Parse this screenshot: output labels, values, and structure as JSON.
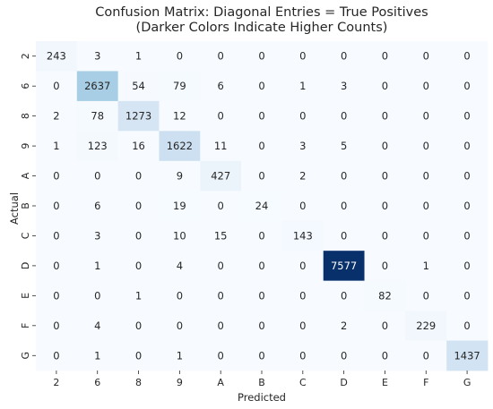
{
  "chart_data": {
    "type": "heatmap",
    "title": "Confusion Matrix: Diagonal Entries = True Positives",
    "subtitle": "(Darker Colors Indicate Higher Counts)",
    "xlabel": "Predicted",
    "ylabel": "Actual",
    "colormap": "Blues",
    "colors": {
      "low": "#f7fbff",
      "high": "#08306b",
      "text_dark": "#262626",
      "text_light": "#ffffff"
    },
    "x_categories": [
      "2",
      "6",
      "8",
      "9",
      "A",
      "B",
      "C",
      "D",
      "E",
      "F",
      "G"
    ],
    "y_categories": [
      "2",
      "6",
      "8",
      "9",
      "A",
      "B",
      "C",
      "D",
      "E",
      "F",
      "G"
    ],
    "values": [
      [
        243,
        3,
        1,
        0,
        0,
        0,
        0,
        0,
        0,
        0,
        0
      ],
      [
        0,
        2637,
        54,
        79,
        6,
        0,
        1,
        3,
        0,
        0,
        0
      ],
      [
        2,
        78,
        1273,
        12,
        0,
        0,
        0,
        0,
        0,
        0,
        0
      ],
      [
        1,
        123,
        16,
        1622,
        11,
        0,
        3,
        5,
        0,
        0,
        0
      ],
      [
        0,
        0,
        0,
        9,
        427,
        0,
        2,
        0,
        0,
        0,
        0
      ],
      [
        0,
        6,
        0,
        19,
        0,
        24,
        0,
        0,
        0,
        0,
        0
      ],
      [
        0,
        3,
        0,
        10,
        15,
        0,
        143,
        0,
        0,
        0,
        0
      ],
      [
        0,
        1,
        0,
        4,
        0,
        0,
        0,
        7577,
        0,
        1,
        0
      ],
      [
        0,
        0,
        1,
        0,
        0,
        0,
        0,
        0,
        82,
        0,
        0
      ],
      [
        0,
        4,
        0,
        0,
        0,
        0,
        0,
        2,
        0,
        229,
        0
      ],
      [
        0,
        1,
        0,
        1,
        0,
        0,
        0,
        0,
        0,
        0,
        1437
      ]
    ],
    "vmin": 0,
    "vmax": 7577,
    "colorbar": false,
    "grid": false
  }
}
